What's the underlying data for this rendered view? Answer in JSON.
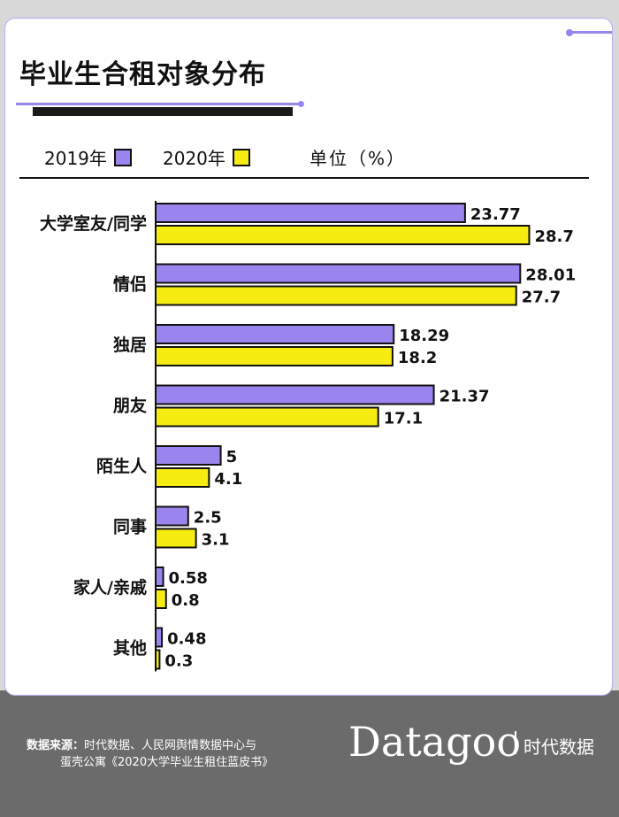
{
  "title": "毕业生合租对象分布",
  "legend": {
    "y2019": "2019年",
    "y2020": "2020年"
  },
  "unit": "单位（%）",
  "colors": {
    "y2019": "#9a85ee",
    "y2020": "#f6ec12",
    "outline": "#111111"
  },
  "chart_data": {
    "type": "bar",
    "orientation": "horizontal",
    "categories": [
      "大学室友/同学",
      "情侣",
      "独居",
      "朋友",
      "陌生人",
      "同事",
      "家人/亲戚",
      "其他"
    ],
    "series": [
      {
        "name": "2019年",
        "values": [
          23.77,
          28.01,
          18.29,
          21.37,
          5,
          2.5,
          0.58,
          0.48
        ],
        "labels": [
          "23.77",
          "28.01",
          "18.29",
          "21.37",
          "5",
          "2.5",
          "0.58",
          "0.48"
        ]
      },
      {
        "name": "2020年",
        "values": [
          28.7,
          27.7,
          18.2,
          17.1,
          4.1,
          3.1,
          0.8,
          0.3
        ],
        "labels": [
          "28.7",
          "27.7",
          "18.2",
          "17.1",
          "4.1",
          "3.1",
          "0.8",
          "0.3"
        ]
      }
    ],
    "xlim": [
      0,
      30
    ],
    "grid": false,
    "legend": "top-left"
  },
  "footer": {
    "source_label": "数据来源：",
    "source_line1": "时代数据、人民网舆情数据中心与",
    "source_line2": "蛋壳公寓《2020大学毕业生租住蓝皮书》",
    "brand": "Datagoo",
    "brand_cn": "时代数据"
  }
}
